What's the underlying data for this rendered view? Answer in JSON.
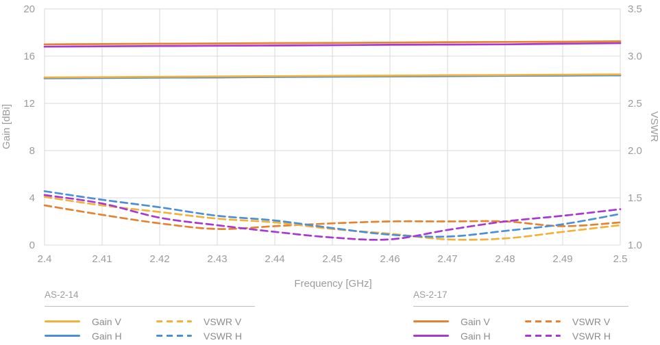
{
  "chart_data": {
    "type": "line",
    "title": "",
    "x": [
      2.4,
      2.41,
      2.42,
      2.43,
      2.44,
      2.45,
      2.46,
      2.47,
      2.48,
      2.49,
      2.5
    ],
    "x_axis": {
      "label": "Frequency [GHz]",
      "min": 2.4,
      "max": 2.5,
      "ticks": [
        "2.4",
        "2.41",
        "2.42",
        "2.43",
        "2.44",
        "2.45",
        "2.46",
        "2.47",
        "2.48",
        "2.49",
        "2.5"
      ]
    },
    "y_left": {
      "label": "Gain [dBi]",
      "min": 0,
      "max": 20,
      "ticks": [
        "20",
        "16",
        "12",
        "8",
        "4",
        "0"
      ]
    },
    "y_right": {
      "label": "VSWR",
      "min": 1.0,
      "max": 3.5,
      "ticks": [
        "3.5",
        "3.0",
        "2.5",
        "2.0",
        "1.5",
        "1.0"
      ]
    },
    "grid": true,
    "legend_position": "bottom",
    "series": [
      {
        "group": "AS-2-14",
        "name": "Gain H",
        "axis": "left",
        "style": "solid",
        "color": "#4A8FD7",
        "values": [
          14.12,
          14.15,
          14.18,
          14.2,
          14.23,
          14.26,
          14.28,
          14.3,
          14.33,
          14.35,
          14.37
        ]
      },
      {
        "group": "AS-2-14",
        "name": "Gain V",
        "axis": "left",
        "style": "solid",
        "color": "#F2B138",
        "values": [
          14.2,
          14.22,
          14.25,
          14.28,
          14.3,
          14.33,
          14.35,
          14.38,
          14.4,
          14.43,
          14.45
        ]
      },
      {
        "group": "AS-2-17",
        "name": "Gain H",
        "axis": "left",
        "style": "solid",
        "color": "#A838D2",
        "values": [
          16.8,
          16.83,
          16.86,
          16.88,
          16.9,
          16.93,
          16.96,
          16.98,
          17.0,
          17.05,
          17.1
        ]
      },
      {
        "group": "AS-2-17",
        "name": "Gain V",
        "axis": "left",
        "style": "solid",
        "color": "#E5822F",
        "values": [
          17.0,
          17.02,
          17.05,
          17.07,
          17.1,
          17.12,
          17.15,
          17.18,
          17.2,
          17.22,
          17.25
        ]
      },
      {
        "group": "AS-2-17",
        "name": "VSWR V",
        "axis": "right",
        "style": "dashed",
        "color": "#E5822F",
        "values": [
          1.42,
          1.32,
          1.23,
          1.17,
          1.2,
          1.23,
          1.25,
          1.25,
          1.25,
          1.2,
          1.24
        ]
      },
      {
        "group": "AS-2-14",
        "name": "VSWR V",
        "axis": "right",
        "style": "dashed",
        "color": "#F2B138",
        "values": [
          1.51,
          1.42,
          1.35,
          1.28,
          1.24,
          1.17,
          1.12,
          1.06,
          1.07,
          1.14,
          1.21
        ]
      },
      {
        "group": "AS-2-14",
        "name": "VSWR H",
        "axis": "right",
        "style": "dashed",
        "color": "#4A8FD7",
        "values": [
          1.57,
          1.48,
          1.4,
          1.31,
          1.26,
          1.18,
          1.11,
          1.09,
          1.15,
          1.22,
          1.33
        ]
      },
      {
        "group": "AS-2-17",
        "name": "VSWR H",
        "axis": "right",
        "style": "dashed",
        "color": "#A838D2",
        "values": [
          1.53,
          1.44,
          1.29,
          1.21,
          1.14,
          1.08,
          1.06,
          1.16,
          1.25,
          1.31,
          1.38
        ]
      }
    ]
  },
  "legend": {
    "groups": [
      {
        "title": "AS-2-14",
        "items": [
          {
            "label": "Gain V",
            "style": "solid",
            "color": "#F2B138"
          },
          {
            "label": "Gain H",
            "style": "solid",
            "color": "#4A8FD7"
          },
          {
            "label": "VSWR V",
            "style": "dashed",
            "color": "#F2B138"
          },
          {
            "label": "VSWR H",
            "style": "dashed",
            "color": "#4A8FD7"
          }
        ]
      },
      {
        "title": "AS-2-17",
        "items": [
          {
            "label": "Gain V",
            "style": "solid",
            "color": "#E5822F"
          },
          {
            "label": "Gain H",
            "style": "solid",
            "color": "#A838D2"
          },
          {
            "label": "VSWR V",
            "style": "dashed",
            "color": "#E5822F"
          },
          {
            "label": "VSWR H",
            "style": "dashed",
            "color": "#A838D2"
          }
        ]
      }
    ]
  },
  "colors": {
    "background": "#FFFFFF",
    "grid": "#D9D9D9",
    "axis_text": "#9B9B9B",
    "legend_text": "#8C8C8C",
    "legend_rule": "#BFBFBF"
  }
}
